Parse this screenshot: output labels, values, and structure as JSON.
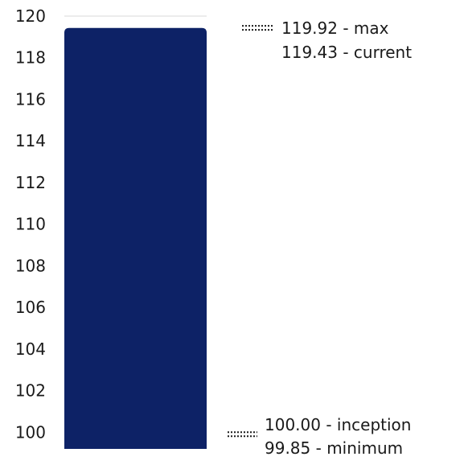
{
  "chart_data": {
    "type": "bar",
    "categories": [
      ""
    ],
    "values": [
      119.43
    ],
    "ylim": [
      99.2,
      120
    ],
    "yticks": [
      100,
      102,
      104,
      106,
      108,
      110,
      112,
      114,
      116,
      118,
      120
    ],
    "ytick_labels": [
      "100",
      "102",
      "104",
      "106",
      "108",
      "110",
      "112",
      "114",
      "116",
      "118",
      "120"
    ],
    "bar_color": "#0d2266",
    "grid_color": "#d9d9d9",
    "annotations": {
      "top": {
        "marker_value": 119.92,
        "lines": [
          "119.92 - max",
          "119.43 - current"
        ]
      },
      "bottom": {
        "marker_value": 99.85,
        "lines": [
          "100.00 - inception",
          "99.85 - minimum"
        ]
      }
    }
  }
}
